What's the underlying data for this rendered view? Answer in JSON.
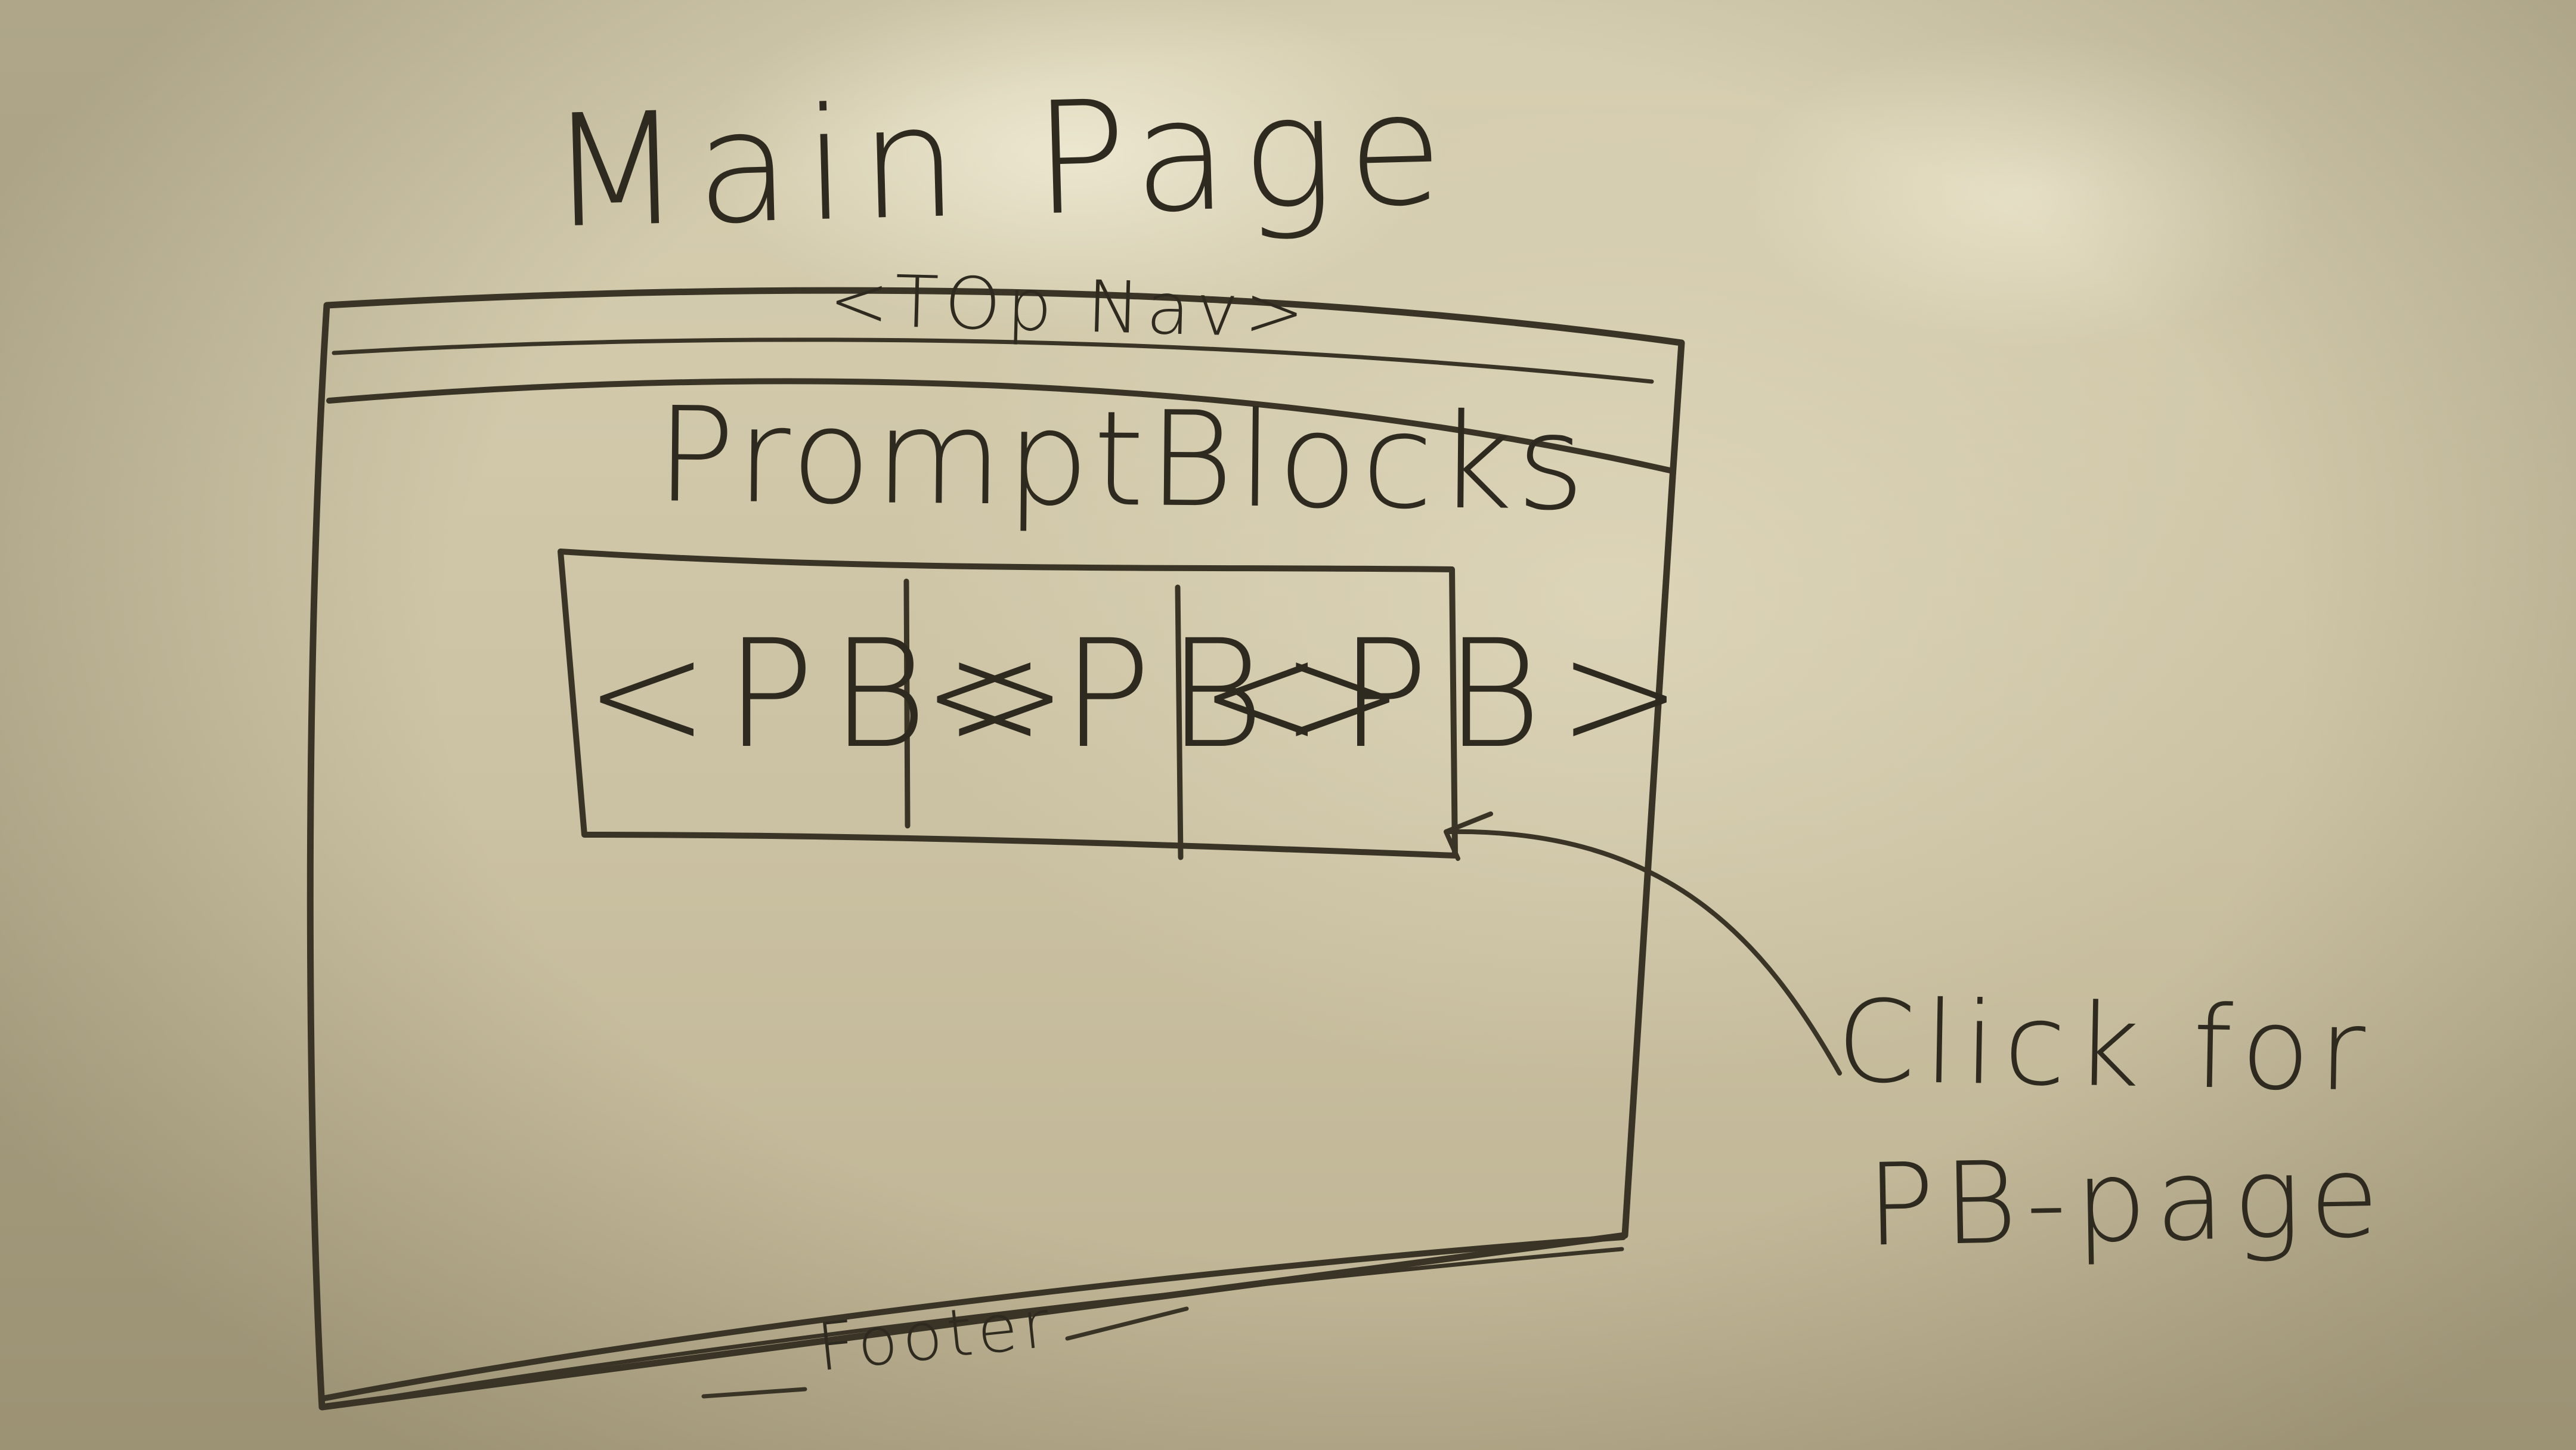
{
  "heading": "Main Page",
  "wireframe": {
    "top_nav_label": "<TOp Nav>",
    "section_title": "PromptBlocks",
    "blocks": [
      {
        "label": "<PB>"
      },
      {
        "label": "<PB>"
      },
      {
        "label": "<PB>"
      }
    ],
    "footer_label": "Footer"
  },
  "annotation": {
    "line1": "Click for",
    "line2": "PB-page"
  },
  "colors": {
    "ink": "#3a3426",
    "whiteboard": "#cfc6a7"
  }
}
